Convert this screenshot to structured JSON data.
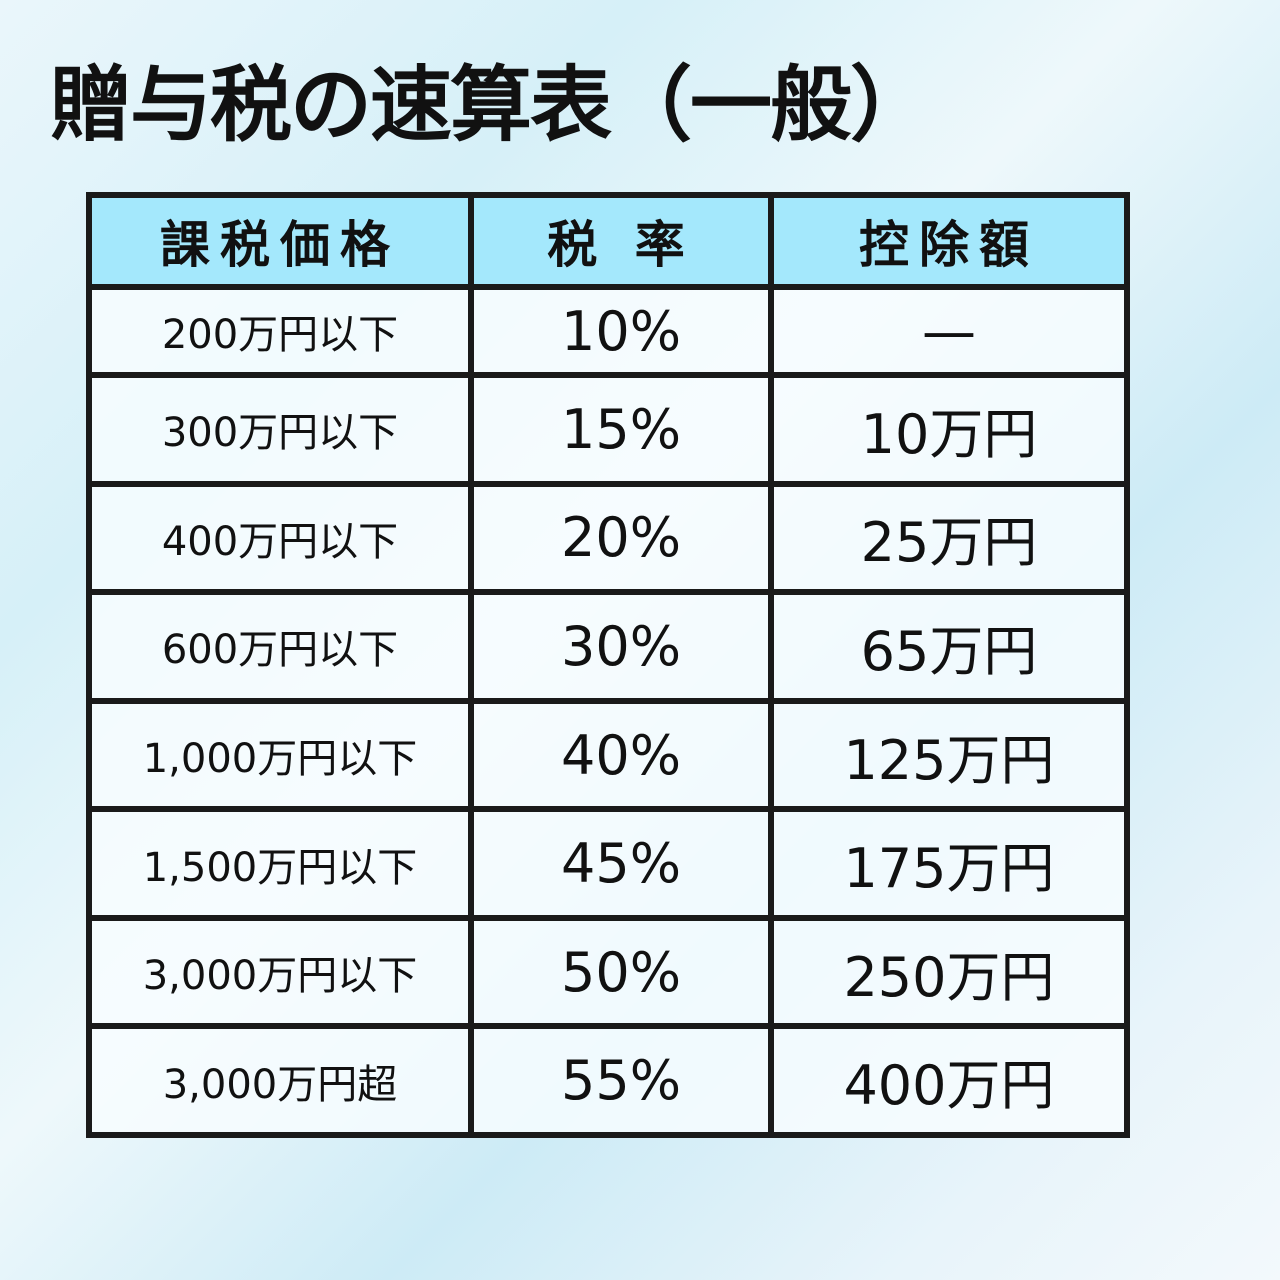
{
  "title": "贈与税の速算表（一般）",
  "table": {
    "headers": [
      "課税価格",
      "税 率",
      "控除額"
    ],
    "header_color": "#a4e8fc",
    "rows": [
      [
        "200万円以下",
        "10%",
        "—"
      ],
      [
        "300万円以下",
        "15%",
        "10万円"
      ],
      [
        "400万円以下",
        "20%",
        "25万円"
      ],
      [
        "600万円以下",
        "30%",
        "65万円"
      ],
      [
        "1,000万円以下",
        "40%",
        "125万円"
      ],
      [
        "1,500万円以下",
        "45%",
        "175万円"
      ],
      [
        "3,000万円以下",
        "50%",
        "250万円"
      ],
      [
        "3,000万円超",
        "55%",
        "400万円"
      ]
    ]
  }
}
